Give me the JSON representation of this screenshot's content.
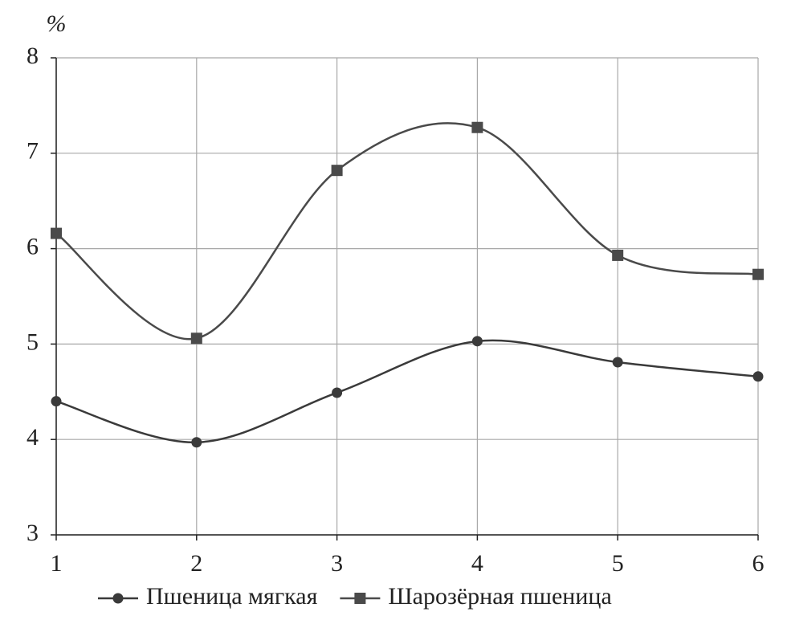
{
  "chart_data": {
    "type": "line",
    "y_label": "%",
    "x": [
      1,
      2,
      3,
      4,
      5,
      6
    ],
    "series": [
      {
        "name": "Пшеница мягкая",
        "color": "#3a3a3a",
        "marker": "circle",
        "values": [
          4.4,
          3.97,
          4.49,
          5.03,
          4.81,
          4.66
        ]
      },
      {
        "name": "Шарозёрная пшеница",
        "color": "#4a4a4a",
        "marker": "square",
        "values": [
          6.16,
          5.06,
          6.82,
          7.27,
          5.93,
          5.73
        ]
      }
    ],
    "xlim": [
      1,
      6
    ],
    "xticks": [
      1,
      2,
      3,
      4,
      5,
      6
    ],
    "ylim": [
      3,
      8
    ],
    "yticks": [
      3,
      4,
      5,
      6,
      7,
      8
    ],
    "grid": true,
    "smooth": true,
    "legend": "bottom"
  }
}
